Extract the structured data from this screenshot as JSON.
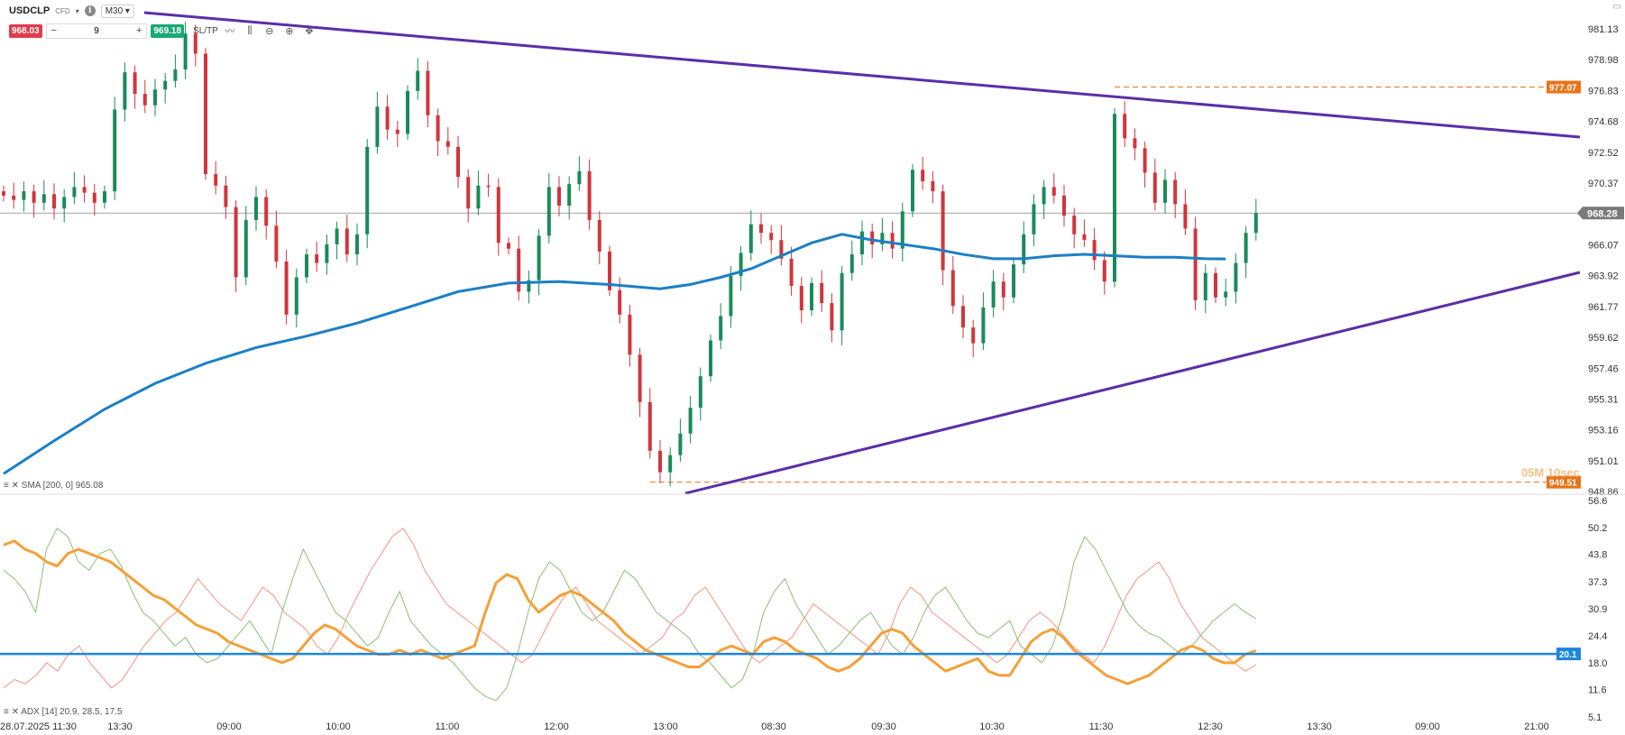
{
  "toolbar": {
    "symbol": "USDCLP",
    "subtype": "CFD",
    "timeframe": "M30",
    "sell_price": "968.03",
    "buy_price": "969.18",
    "quantity": "9",
    "qty_minus": "−",
    "qty_plus": "+",
    "sltp_label": "SL/TP",
    "icons": [
      "info-icon",
      "line-chart-icon",
      "candlestick-icon",
      "zoom-out-icon",
      "zoom-in-icon",
      "move-icon"
    ]
  },
  "colors": {
    "bull": "#1b8a5a",
    "bear": "#d0363c",
    "sma": "#1c7fc4",
    "trendline": "#5a2fa8",
    "adx": "#f4a03a",
    "plus_di": "#8bbf73",
    "minus_di": "#f29580",
    "level_line": "#1a86e0",
    "marker": "#e8741a"
  },
  "chart_data": [
    {
      "type": "candlestick",
      "x_ticks": [
        "28.07.2025 11:30",
        "13:30",
        "09:00",
        "10:00",
        "11:00",
        "12:00",
        "13:00",
        "08:30",
        "09:30",
        "10:30",
        "11:30",
        "12:30",
        "13:30",
        "09:00",
        "21:00"
      ],
      "y_ticks": [
        "981.13",
        "978.98",
        "976.83",
        "974.68",
        "972.52",
        "970.37",
        "966.07",
        "963.92",
        "961.77",
        "959.62",
        "957.46",
        "955.31",
        "953.16",
        "951.01",
        "948.86"
      ],
      "ylim": [
        948.86,
        981.13
      ],
      "current_price": "968.28",
      "high_marker": "977.07",
      "low_marker": "949.51",
      "countdown": "05M 10sec",
      "sma_label": "SMA [200, 0] 965.08",
      "sma": [
        [
          0,
          950.1
        ],
        [
          5,
          952.4
        ],
        [
          10,
          954.6
        ],
        [
          15,
          956.4
        ],
        [
          20,
          957.8
        ],
        [
          25,
          958.9
        ],
        [
          30,
          959.7
        ],
        [
          35,
          960.6
        ],
        [
          40,
          961.7
        ],
        [
          45,
          962.8
        ],
        [
          50,
          963.4
        ],
        [
          55,
          963.5
        ],
        [
          60,
          963.3
        ],
        [
          65,
          963.0
        ],
        [
          68,
          963.3
        ],
        [
          71,
          963.8
        ],
        [
          74,
          964.4
        ],
        [
          77,
          965.3
        ],
        [
          80,
          966.2
        ],
        [
          83,
          966.8
        ],
        [
          86,
          966.4
        ],
        [
          89,
          966.1
        ],
        [
          92,
          965.8
        ],
        [
          95,
          965.4
        ],
        [
          98,
          965.1
        ],
        [
          101,
          965.1
        ],
        [
          104,
          965.3
        ],
        [
          107,
          965.4
        ],
        [
          110,
          965.3
        ],
        [
          113,
          965.2
        ],
        [
          116,
          965.2
        ],
        [
          119,
          965.1
        ],
        [
          121,
          965.08
        ]
      ],
      "candles_close": [
        969.5,
        969.2,
        969.8,
        969.0,
        969.6,
        968.6,
        969.4,
        970.1,
        969.7,
        969.0,
        969.8,
        975.5,
        978.1,
        976.6,
        975.8,
        976.9,
        977.5,
        978.3,
        980.8,
        979.4,
        971.0,
        970.2,
        968.7,
        963.8,
        967.8,
        969.4,
        967.4,
        964.9,
        961.2,
        963.8,
        965.4,
        964.8,
        966.1,
        967.2,
        965.4,
        966.8,
        972.9,
        975.7,
        974.1,
        973.8,
        976.8,
        978.2,
        975.1,
        973.3,
        972.9,
        970.8,
        968.6,
        970.2,
        970.1,
        966.2,
        965.8,
        962.8,
        963.6,
        966.7,
        970.1,
        968.8,
        970.3,
        971.2,
        967.8,
        965.6,
        962.9,
        961.2,
        958.4,
        955.1,
        951.7,
        950.2,
        951.4,
        952.9,
        954.7,
        956.9,
        959.4,
        961.1,
        963.9,
        965.5,
        967.5,
        966.9,
        966.4,
        965.1,
        963.2,
        961.5,
        963.4,
        962.0,
        960.1,
        964.1,
        965.4,
        967.0,
        966.1,
        966.9,
        965.8,
        968.4,
        971.3,
        970.5,
        969.8,
        964.3,
        961.8,
        960.3,
        959.2,
        961.7,
        963.5,
        962.4,
        964.7,
        966.8,
        968.9,
        970.1,
        969.5,
        968.1,
        966.8,
        966.4,
        965.0,
        963.5,
        975.2,
        973.5,
        972.8,
        971.1,
        969.0,
        970.6,
        968.9,
        967.2,
        962.2,
        964.1,
        962.4,
        962.8,
        964.8,
        966.9,
        968.3
      ]
    },
    {
      "type": "line",
      "label": "ADX [14] 20.9, 28.5, 17.5",
      "y_ticks": [
        "56.6",
        "50.2",
        "43.8",
        "37.3",
        "30.9",
        "24.4",
        "18.0",
        "11.6",
        "5.1"
      ],
      "ylim": [
        5.1,
        56.6
      ],
      "level": 20.1,
      "level_label": "20.1",
      "series": [
        {
          "key": "adx",
          "values": [
            46,
            47,
            45,
            44,
            42,
            41,
            44,
            45,
            44,
            43,
            42,
            40,
            38,
            36,
            34,
            33,
            31,
            29,
            27,
            26,
            25,
            23,
            22,
            21,
            20,
            19,
            18,
            19,
            22,
            25,
            27,
            26,
            24,
            22,
            21,
            20,
            20,
            21,
            20,
            21,
            20,
            19,
            20,
            21,
            22,
            30,
            37,
            39,
            38,
            33,
            30,
            32,
            34,
            35,
            34,
            32,
            30,
            28,
            25,
            23,
            21,
            20,
            19,
            18,
            17,
            17,
            19,
            21,
            22,
            21,
            20,
            23,
            24,
            23,
            21,
            20,
            19,
            17,
            16,
            17,
            19,
            22,
            25,
            26,
            25,
            22,
            20,
            18,
            16,
            17,
            18,
            19,
            16,
            15,
            15,
            19,
            23,
            25,
            26,
            24,
            21,
            19,
            17,
            15,
            14,
            13,
            14,
            15,
            17,
            19,
            21,
            22,
            21,
            19,
            18,
            18,
            20,
            20.9
          ]
        },
        {
          "key": "plus_di",
          "values": [
            40,
            38,
            35,
            30,
            45,
            50,
            48,
            42,
            40,
            44,
            45,
            41,
            35,
            30,
            28,
            25,
            22,
            24,
            20,
            18,
            19,
            22,
            25,
            28,
            24,
            20,
            30,
            38,
            45,
            40,
            35,
            30,
            28,
            25,
            22,
            24,
            30,
            35,
            28,
            25,
            22,
            20,
            18,
            15,
            12,
            10,
            9,
            12,
            20,
            30,
            38,
            42,
            40,
            35,
            30,
            28,
            30,
            35,
            40,
            38,
            34,
            30,
            28,
            26,
            24,
            20,
            18,
            15,
            12,
            14,
            20,
            30,
            35,
            38,
            32,
            28,
            24,
            20,
            22,
            25,
            28,
            30,
            26,
            22,
            20,
            24,
            30,
            34,
            36,
            32,
            28,
            25,
            24,
            26,
            28,
            22,
            20,
            18,
            22,
            30,
            42,
            48,
            45,
            40,
            35,
            30,
            27,
            25,
            24,
            22,
            20,
            22,
            25,
            28,
            30,
            32,
            30,
            28.5
          ]
        },
        {
          "key": "minus_di",
          "values": [
            12,
            14,
            13,
            15,
            18,
            16,
            20,
            22,
            18,
            15,
            12,
            14,
            18,
            22,
            25,
            28,
            30,
            34,
            38,
            35,
            32,
            30,
            28,
            32,
            36,
            34,
            30,
            28,
            26,
            22,
            20,
            24,
            30,
            35,
            40,
            44,
            48,
            50,
            46,
            40,
            36,
            32,
            30,
            28,
            26,
            24,
            22,
            20,
            18,
            20,
            25,
            30,
            34,
            36,
            32,
            28,
            26,
            24,
            22,
            20,
            22,
            24,
            28,
            30,
            34,
            36,
            32,
            28,
            24,
            20,
            18,
            20,
            22,
            24,
            28,
            32,
            30,
            28,
            26,
            24,
            22,
            20,
            25,
            32,
            36,
            34,
            30,
            28,
            26,
            24,
            22,
            20,
            18,
            20,
            24,
            28,
            30,
            28,
            25,
            22,
            20,
            18,
            22,
            28,
            34,
            38,
            40,
            42,
            38,
            32,
            28,
            24,
            22,
            20,
            18,
            16,
            17.5
          ]
        }
      ]
    }
  ]
}
